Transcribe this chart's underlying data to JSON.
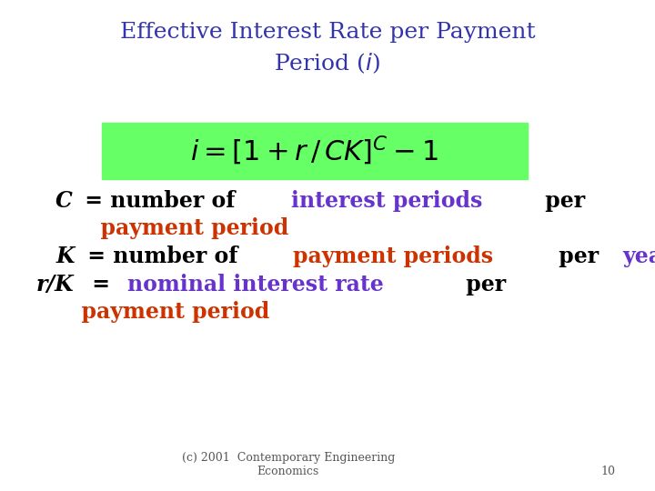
{
  "title_line1": "Effective Interest Rate per Payment",
  "title_line2": "Period (",
  "title_color": "#3333aa",
  "title_fontsize": 18,
  "formula_box_color": "#66ff66",
  "formula_fontsize": 22,
  "bg_color": "#ffffff",
  "footer_text": "(c) 2001  Contemporary Engineering\nEconomics",
  "footer_page": "10",
  "footer_fontsize": 9,
  "footer_color": "#555555",
  "body_fontsize": 17,
  "black": "#000000",
  "purple": "#6633cc",
  "orange": "#cc3300",
  "body_lines": [
    [
      {
        "text": "C",
        "color": "#000000",
        "style": "italic",
        "weight": "bold"
      },
      {
        "text": " = number of ",
        "color": "#000000",
        "style": "normal",
        "weight": "bold"
      },
      {
        "text": "interest periods",
        "color": "#6633cc",
        "style": "normal",
        "weight": "bold"
      },
      {
        "text": " per",
        "color": "#000000",
        "style": "normal",
        "weight": "bold"
      }
    ],
    [
      {
        "text": "      payment period",
        "color": "#cc3300",
        "style": "normal",
        "weight": "bold"
      }
    ],
    [
      {
        "text": "K",
        "color": "#000000",
        "style": "italic",
        "weight": "bold"
      },
      {
        "text": " = number of ",
        "color": "#000000",
        "style": "normal",
        "weight": "bold"
      },
      {
        "text": "payment periods",
        "color": "#cc3300",
        "style": "normal",
        "weight": "bold"
      },
      {
        "text": " per ",
        "color": "#000000",
        "style": "normal",
        "weight": "bold"
      },
      {
        "text": "year",
        "color": "#6633cc",
        "style": "normal",
        "weight": "bold"
      }
    ],
    [
      {
        "text": "r/K",
        "color": "#000000",
        "style": "italic",
        "weight": "bold"
      },
      {
        "text": " = ",
        "color": "#000000",
        "style": "normal",
        "weight": "bold"
      },
      {
        "text": "nominal interest rate",
        "color": "#6633cc",
        "style": "normal",
        "weight": "bold"
      },
      {
        "text": " per",
        "color": "#000000",
        "style": "normal",
        "weight": "bold"
      }
    ],
    [
      {
        "text": "      payment period",
        "color": "#cc3300",
        "style": "normal",
        "weight": "bold"
      }
    ]
  ]
}
